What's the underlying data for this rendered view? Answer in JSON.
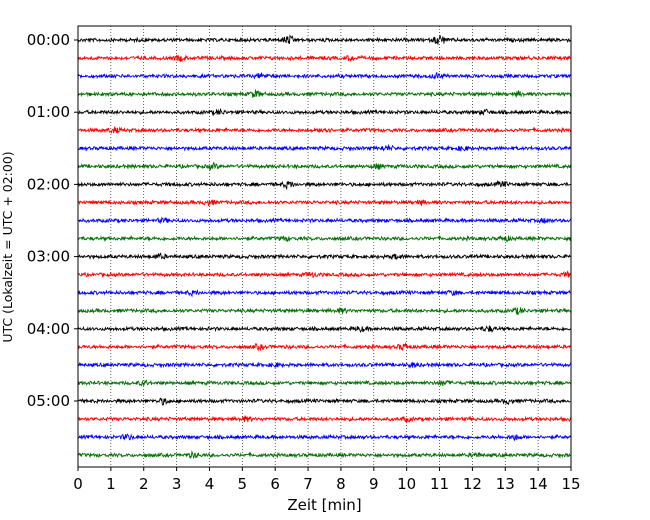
{
  "chart_data": {
    "type": "line",
    "title": "",
    "xlabel": "Zeit  [min]",
    "ylabel": "UTC (Lokalzeit = UTC + 02:00)",
    "xlim": [
      0,
      15
    ],
    "x_ticks": [
      "0",
      "1",
      "2",
      "3",
      "4",
      "5",
      "6",
      "7",
      "8",
      "9",
      "10",
      "11",
      "12",
      "13",
      "14",
      "15"
    ],
    "y_ticks": [
      "00:00",
      "01:00",
      "02:00",
      "03:00",
      "04:00",
      "05:00"
    ],
    "trace_interval_min": 15,
    "traces_per_hour": 4,
    "x_grid": true,
    "grid_style": "dotted vertical lines at each minute",
    "colors": [
      "#000000",
      "#ff0000",
      "#0000ff",
      "#007000"
    ],
    "series": [
      {
        "start": "00:00",
        "color": "#000000",
        "events": [
          {
            "t": 6.4,
            "amp": 1.2
          },
          {
            "t": 11.0,
            "amp": 1.5
          }
        ]
      },
      {
        "start": "00:15",
        "color": "#ff0000",
        "events": [
          {
            "t": 3.1,
            "amp": 0.7
          },
          {
            "t": 8.3,
            "amp": 0.6
          }
        ]
      },
      {
        "start": "00:30",
        "color": "#0000ff",
        "events": [
          {
            "t": 5.6,
            "amp": 0.7
          },
          {
            "t": 10.9,
            "amp": 0.7
          }
        ]
      },
      {
        "start": "00:45",
        "color": "#007000",
        "events": [
          {
            "t": 5.4,
            "amp": 1.0
          },
          {
            "t": 13.4,
            "amp": 0.6
          }
        ]
      },
      {
        "start": "01:00",
        "color": "#000000",
        "events": [
          {
            "t": 4.3,
            "amp": 0.6
          },
          {
            "t": 12.4,
            "amp": 0.6
          }
        ]
      },
      {
        "start": "01:15",
        "color": "#ff0000",
        "events": [
          {
            "t": 1.1,
            "amp": 0.7
          },
          {
            "t": 7.5,
            "amp": 0.8
          }
        ]
      },
      {
        "start": "01:30",
        "color": "#0000ff",
        "events": [
          {
            "t": 9.4,
            "amp": 0.6
          },
          {
            "t": 11.7,
            "amp": 0.6
          }
        ]
      },
      {
        "start": "01:45",
        "color": "#007000",
        "events": [
          {
            "t": 4.1,
            "amp": 0.7
          },
          {
            "t": 9.1,
            "amp": 0.6
          }
        ]
      },
      {
        "start": "02:00",
        "color": "#000000",
        "events": [
          {
            "t": 6.4,
            "amp": 0.9
          },
          {
            "t": 12.9,
            "amp": 0.7
          }
        ]
      },
      {
        "start": "02:15",
        "color": "#ff0000",
        "events": [
          {
            "t": 4.0,
            "amp": 0.7
          },
          {
            "t": 10.4,
            "amp": 0.6
          }
        ]
      },
      {
        "start": "02:30",
        "color": "#0000ff",
        "events": [
          {
            "t": 2.6,
            "amp": 0.5
          },
          {
            "t": 14.2,
            "amp": 0.5
          }
        ]
      },
      {
        "start": "02:45",
        "color": "#007000",
        "events": [
          {
            "t": 6.3,
            "amp": 0.6
          },
          {
            "t": 13.0,
            "amp": 0.6
          }
        ]
      },
      {
        "start": "03:00",
        "color": "#000000",
        "events": [
          {
            "t": 2.5,
            "amp": 0.6
          },
          {
            "t": 9.7,
            "amp": 0.6
          }
        ]
      },
      {
        "start": "03:15",
        "color": "#ff0000",
        "events": [
          {
            "t": 7.1,
            "amp": 0.6
          },
          {
            "t": 14.9,
            "amp": 0.5
          }
        ]
      },
      {
        "start": "03:30",
        "color": "#0000ff",
        "events": [
          {
            "t": 3.5,
            "amp": 0.5
          },
          {
            "t": 11.4,
            "amp": 0.5
          }
        ]
      },
      {
        "start": "03:45",
        "color": "#007000",
        "events": [
          {
            "t": 8.0,
            "amp": 0.6
          },
          {
            "t": 13.4,
            "amp": 0.8
          }
        ]
      },
      {
        "start": "04:00",
        "color": "#000000",
        "events": [
          {
            "t": 8.6,
            "amp": 0.6
          },
          {
            "t": 12.5,
            "amp": 0.7
          }
        ]
      },
      {
        "start": "04:15",
        "color": "#ff0000",
        "events": [
          {
            "t": 5.5,
            "amp": 0.6
          },
          {
            "t": 9.9,
            "amp": 0.8
          }
        ]
      },
      {
        "start": "04:30",
        "color": "#0000ff",
        "events": [
          {
            "t": 6.0,
            "amp": 0.5
          },
          {
            "t": 10.2,
            "amp": 0.6
          }
        ]
      },
      {
        "start": "04:45",
        "color": "#007000",
        "events": [
          {
            "t": 2.0,
            "amp": 0.6
          },
          {
            "t": 11.1,
            "amp": 0.6
          }
        ]
      },
      {
        "start": "05:00",
        "color": "#000000",
        "events": [
          {
            "t": 2.6,
            "amp": 0.8
          },
          {
            "t": 13.1,
            "amp": 0.6
          }
        ]
      },
      {
        "start": "05:15",
        "color": "#ff0000",
        "events": [
          {
            "t": 5.1,
            "amp": 0.6
          },
          {
            "t": 10.0,
            "amp": 0.5
          }
        ]
      },
      {
        "start": "05:30",
        "color": "#0000ff",
        "events": [
          {
            "t": 1.5,
            "amp": 0.7
          },
          {
            "t": 13.3,
            "amp": 0.7
          }
        ]
      },
      {
        "start": "05:45",
        "color": "#007000",
        "events": [
          {
            "t": 3.5,
            "amp": 0.6
          },
          {
            "t": 12.1,
            "amp": 0.5
          }
        ]
      }
    ]
  }
}
